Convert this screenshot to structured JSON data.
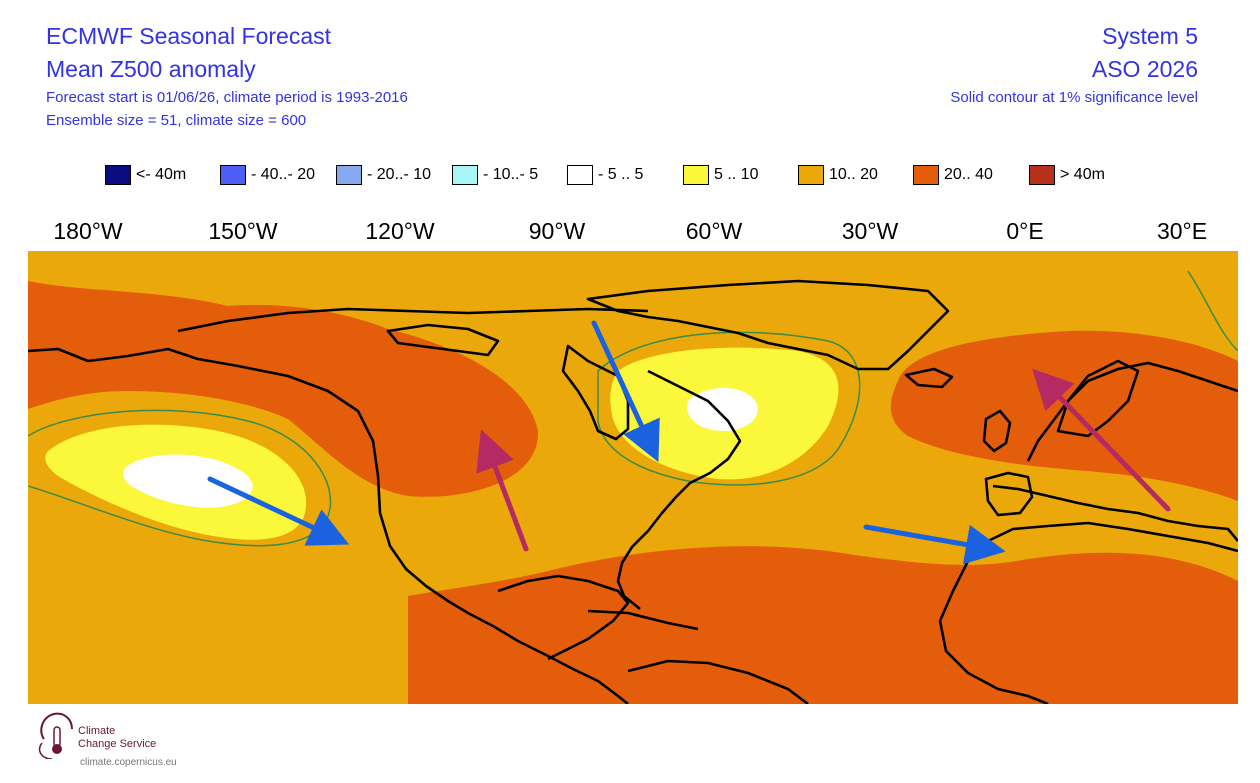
{
  "header": {
    "title": "ECMWF Seasonal Forecast",
    "subtitle": "Mean Z500 anomaly",
    "forecast_start": "Forecast start is 01/06/26, climate period is 1993-2016",
    "ensemble": "Ensemble size = 51, climate size = 600",
    "system": "System 5",
    "period": "ASO 2026",
    "contour_note": "Solid contour at 1% significance level"
  },
  "legend": [
    {
      "label": "<- 40m",
      "color": "#0b0b80"
    },
    {
      "label": "- 40..- 20",
      "color": "#4c5ef5"
    },
    {
      "label": "- 20..- 10",
      "color": "#86a9f0"
    },
    {
      "label": "- 10..- 5",
      "color": "#a8f5f5"
    },
    {
      "label": "- 5 .. 5",
      "color": "#ffffff"
    },
    {
      "label": "5 .. 10",
      "color": "#fbf83c"
    },
    {
      "label": "10.. 20",
      "color": "#eaa80a"
    },
    {
      "label": "20.. 40",
      "color": "#e35d0a"
    },
    {
      "label": "> 40m",
      "color": "#b7311a"
    }
  ],
  "longitudes": [
    "180°W",
    "150°W",
    "120°W",
    "90°W",
    "60°W",
    "30°W",
    "0°E",
    "30°E"
  ],
  "map": {
    "colors": {
      "band_10_20": "#eaa80a",
      "band_20_40": "#e35d0a",
      "band_5_10": "#fbf83c",
      "band_neutral": "#ffffff",
      "significance_contour": "#3c8c46",
      "arrow_blue": "#1a62e0",
      "arrow_magenta": "#b52a62"
    },
    "arrows": [
      "blue",
      "magenta",
      "blue",
      "blue",
      "magenta"
    ]
  },
  "logo": {
    "line1": "Climate",
    "line2": "Change Service",
    "url": "climate.copernicus.eu"
  }
}
